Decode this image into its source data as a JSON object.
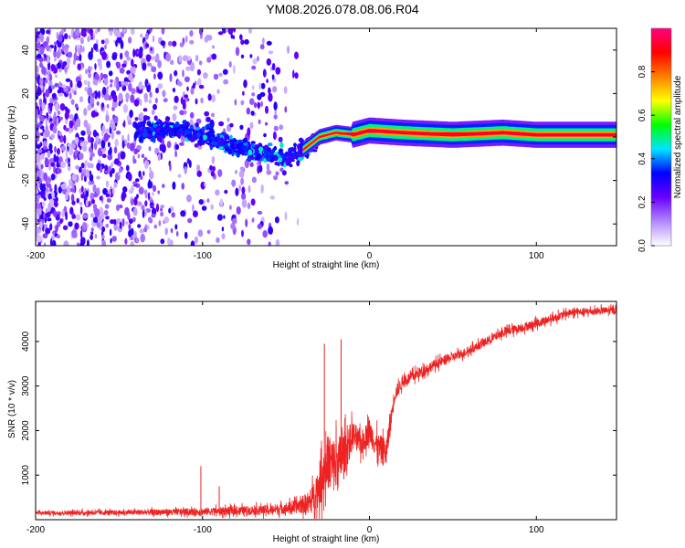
{
  "title": "YM08.2026.078.08.06.R04",
  "chart_data": [
    {
      "type": "heatmap",
      "title": "YM08.2026.078.08.06.R04",
      "xlabel": "Height of straight line (km)",
      "ylabel": "Frequency (Hz)",
      "xlim": [
        -200,
        148
      ],
      "ylim": [
        -50,
        50
      ],
      "xticks": [
        -200,
        -100,
        0,
        100
      ],
      "xtick_labels": [
        "-200",
        "-100",
        "0",
        "100"
      ],
      "yticks": [
        -40,
        -20,
        0,
        20,
        40
      ],
      "ytick_labels": [
        "-40",
        "-20",
        "0",
        "20",
        "40"
      ],
      "colorbar": {
        "label": "Normalized spectral amplitude",
        "range": [
          0,
          1
        ],
        "ticks": [
          0,
          0.2,
          0.4,
          0.6,
          0.8
        ],
        "tick_labels": [
          "0.0",
          "0.2",
          "0.4",
          "0.6",
          "0.8"
        ],
        "colors": [
          "#ffffff",
          "#b388ff",
          "#6a00ff",
          "#0000ff",
          "#00e5ff",
          "#00ff00",
          "#ffff00",
          "#ff7f00",
          "#ff0000",
          "#ff0080"
        ]
      },
      "ridge": {
        "x": [
          -200,
          -150,
          -120,
          -100,
          -80,
          -60,
          -50,
          -40,
          -30,
          -20,
          -10,
          0,
          20,
          50,
          80,
          100,
          148
        ],
        "frequency": [
          2,
          2,
          4,
          1,
          -4,
          -8,
          -10,
          -6,
          0,
          2,
          1,
          3,
          2,
          1,
          2,
          1,
          1
        ]
      }
    },
    {
      "type": "line",
      "xlabel": "Height of straight line (km)",
      "ylabel": "SNR (10 * v/v)",
      "xlim": [
        -200,
        148
      ],
      "ylim": [
        0,
        4900
      ],
      "xticks": [
        -200,
        -100,
        0,
        100
      ],
      "xtick_labels": [
        "-200",
        "-100",
        "0",
        "100"
      ],
      "yticks": [
        1000,
        2000,
        3000,
        4000
      ],
      "ytick_labels": [
        "1000",
        "2000",
        "3000",
        "4000"
      ],
      "series": [
        {
          "name": "SNR",
          "color": "#ee2222",
          "x": [
            -200,
            -150,
            -100,
            -60,
            -45,
            -35,
            -30,
            -25,
            -20,
            -15,
            -10,
            -5,
            0,
            5,
            10,
            15,
            20,
            40,
            60,
            80,
            100,
            120,
            148
          ],
          "y": [
            150,
            160,
            180,
            220,
            280,
            400,
            800,
            1300,
            1200,
            1500,
            1900,
            1700,
            2000,
            1600,
            1500,
            2800,
            3100,
            3500,
            3800,
            4200,
            4400,
            4650,
            4700
          ],
          "noise": [
            80,
            100,
            150,
            200,
            250,
            500,
            900,
            1100,
            1200,
            900,
            600,
            500,
            500,
            600,
            600,
            300,
            250,
            200,
            180,
            180,
            180,
            150,
            150
          ]
        }
      ],
      "spikes": [
        {
          "x": -101,
          "y": 1200
        },
        {
          "x": -90,
          "y": 750
        },
        {
          "x": -27,
          "y": 3950
        },
        {
          "x": -17,
          "y": 4050
        }
      ]
    }
  ]
}
